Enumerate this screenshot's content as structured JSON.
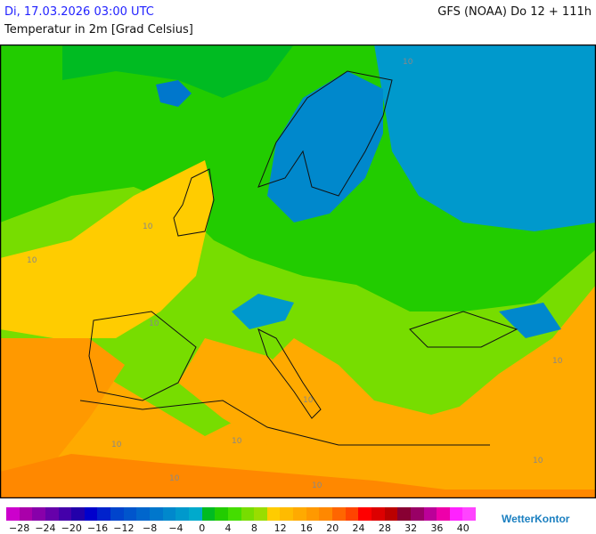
{
  "header": {
    "datetime": "Di, 17.03.2026 03:00 UTC",
    "variable": "Temperatur in 2m [Grad Celsius]",
    "model_run": "GFS (NOAA) Do 12 + 111h"
  },
  "map": {
    "contour_labels": [
      "10",
      "10",
      "10",
      "10",
      "10",
      "10",
      "10",
      "10",
      "10",
      "10",
      "10"
    ]
  },
  "legend": {
    "colors": [
      "#cc00cc",
      "#aa00aa",
      "#8800aa",
      "#6600aa",
      "#4400aa",
      "#2200aa",
      "#0000cc",
      "#0022cc",
      "#0044cc",
      "#0055cc",
      "#0066cc",
      "#0077cc",
      "#0088cc",
      "#0099cc",
      "#00aacc",
      "#00bb22",
      "#22cc00",
      "#44dd00",
      "#77dd00",
      "#99dd00",
      "#ffcc00",
      "#ffbb00",
      "#ffaa00",
      "#ff9900",
      "#ff8800",
      "#ff6600",
      "#ff4400",
      "#ff0000",
      "#dd0000",
      "#bb0000",
      "#880033",
      "#990066",
      "#bb0099",
      "#ee00aa",
      "#ff22ff",
      "#ff44ff"
    ],
    "ticks": [
      "−28",
      "−24",
      "−20",
      "−16",
      "−12",
      "−8",
      "−4",
      "0",
      "4",
      "8",
      "12",
      "16",
      "20",
      "24",
      "28",
      "32",
      "36",
      "40"
    ]
  },
  "brand": {
    "logo": "WetterKontor"
  }
}
